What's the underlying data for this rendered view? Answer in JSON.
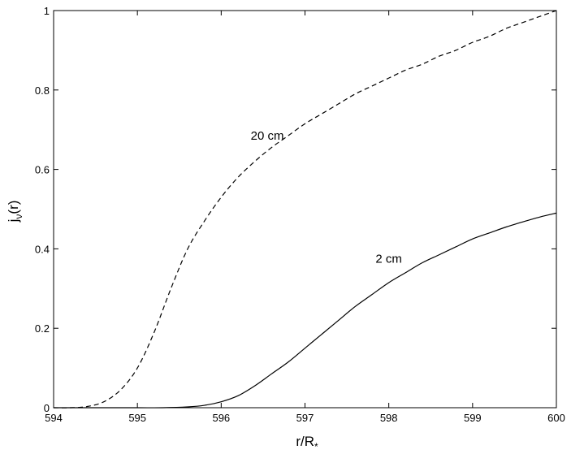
{
  "chart_data": {
    "type": "line",
    "title": "",
    "xlabel": {
      "main": "r/R",
      "sub": "*"
    },
    "ylabel": {
      "main": "j",
      "sub": "ν",
      "suffix": "(r)"
    },
    "xlim": [
      594,
      600
    ],
    "ylim": [
      0,
      1
    ],
    "xticks": [
      594,
      595,
      596,
      597,
      598,
      599,
      600
    ],
    "yticks": [
      0,
      0.2,
      0.4,
      0.6,
      0.8,
      1
    ],
    "xtick_labels": [
      "594",
      "595",
      "596",
      "597",
      "598",
      "599",
      "600"
    ],
    "ytick_labels": [
      "0",
      "0.2",
      "0.4",
      "0.6",
      "0.8",
      "1"
    ],
    "grid": false,
    "series": [
      {
        "name": "20 cm",
        "style": "dashed",
        "color": "#000000",
        "x": [
          594.0,
          594.2,
          594.4,
          594.6,
          594.8,
          595.0,
          595.2,
          595.4,
          595.6,
          595.8,
          596.0,
          596.2,
          596.4,
          596.6,
          596.8,
          597.0,
          597.2,
          597.4,
          597.6,
          597.8,
          598.0,
          598.2,
          598.4,
          598.6,
          598.8,
          599.0,
          599.2,
          599.4,
          599.6,
          599.8,
          600.0
        ],
        "y": [
          0.0,
          0.0,
          0.003,
          0.015,
          0.045,
          0.1,
          0.19,
          0.3,
          0.4,
          0.47,
          0.53,
          0.58,
          0.62,
          0.655,
          0.685,
          0.715,
          0.74,
          0.765,
          0.79,
          0.81,
          0.83,
          0.85,
          0.865,
          0.885,
          0.9,
          0.92,
          0.935,
          0.955,
          0.97,
          0.985,
          1.0
        ]
      },
      {
        "name": "2 cm",
        "style": "solid",
        "color": "#000000",
        "x": [
          594.0,
          594.5,
          595.0,
          595.3,
          595.6,
          595.8,
          596.0,
          596.2,
          596.4,
          596.6,
          596.8,
          597.0,
          597.2,
          597.4,
          597.6,
          597.8,
          598.0,
          598.2,
          598.4,
          598.6,
          598.8,
          599.0,
          599.2,
          599.4,
          599.6,
          599.8,
          600.0
        ],
        "y": [
          0.0,
          0.0,
          0.0,
          0.0,
          0.002,
          0.006,
          0.015,
          0.03,
          0.055,
          0.085,
          0.115,
          0.15,
          0.185,
          0.22,
          0.255,
          0.285,
          0.315,
          0.34,
          0.365,
          0.385,
          0.405,
          0.425,
          0.44,
          0.455,
          0.468,
          0.48,
          0.49
        ]
      }
    ],
    "annotations": [
      {
        "text": "20 cm",
        "x": 596.55,
        "y": 0.675
      },
      {
        "text": "2 cm",
        "x": 598.0,
        "y": 0.365
      }
    ]
  }
}
